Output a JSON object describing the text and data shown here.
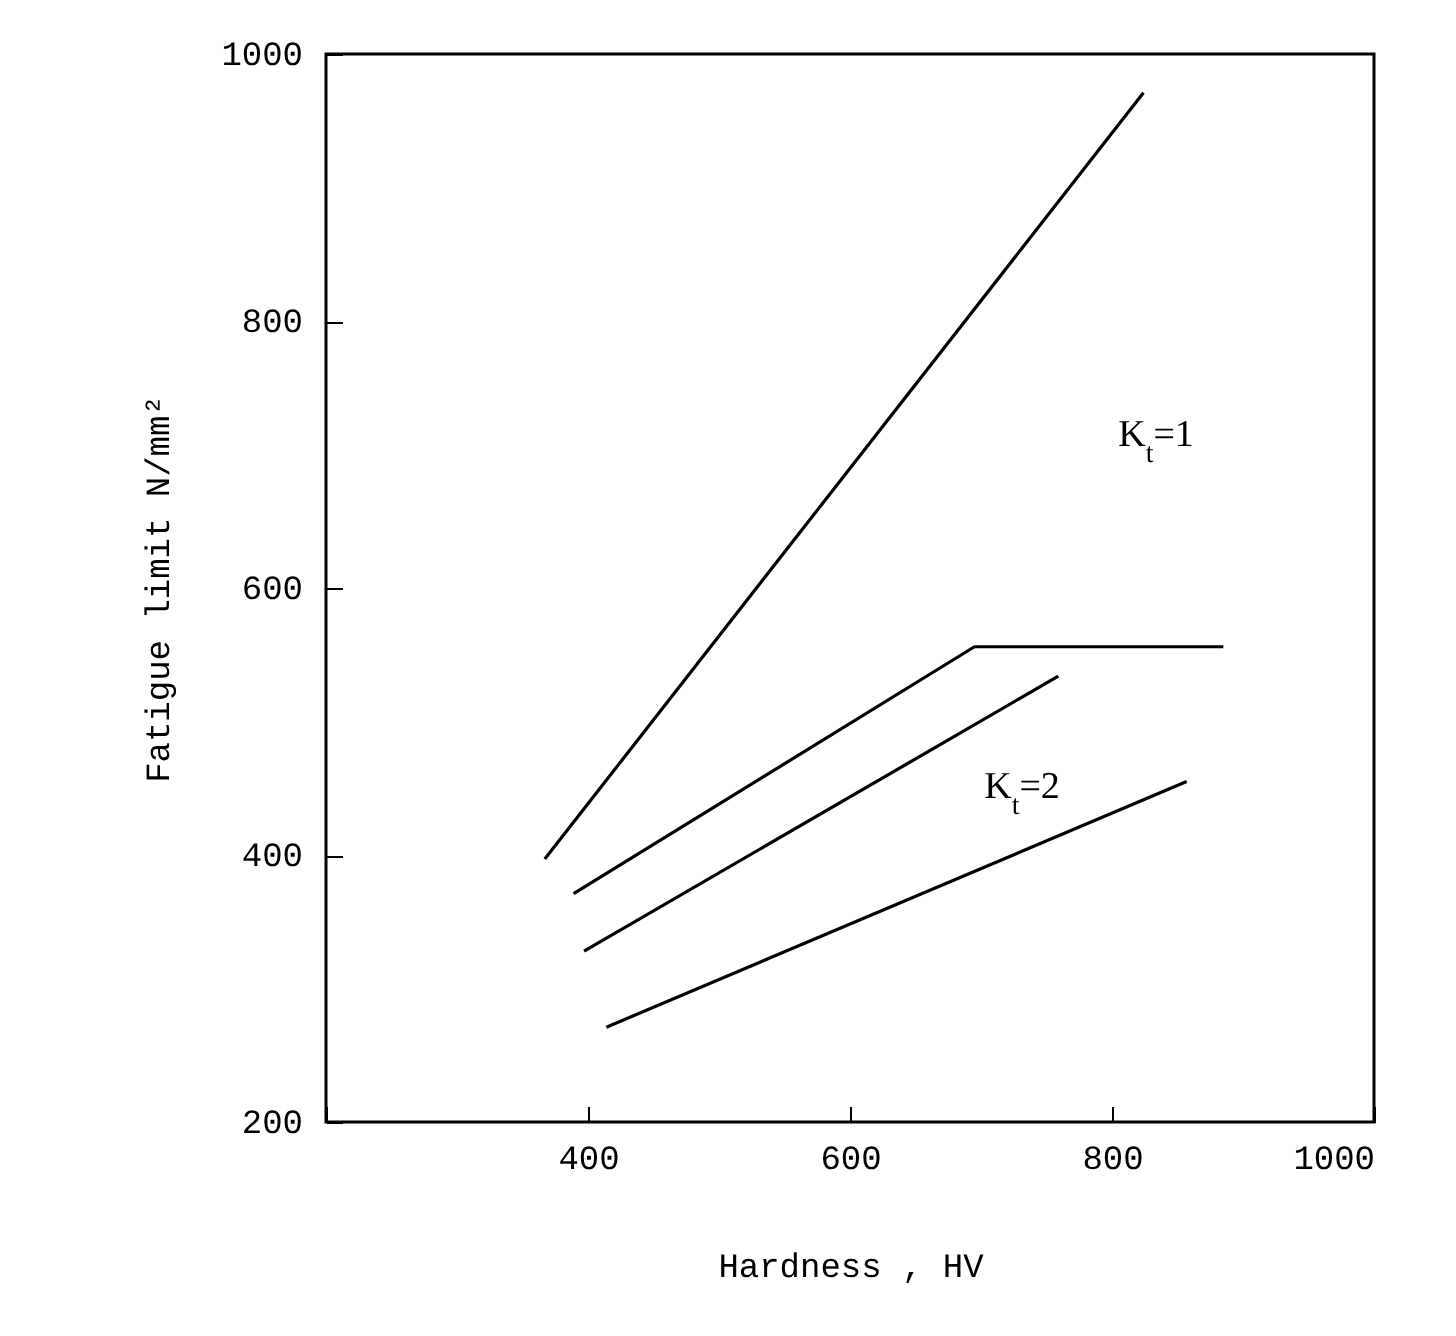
{
  "chart_data": {
    "type": "line",
    "xlabel": "Hardness , HV",
    "ylabel": "Fatigue limit  N/mm²",
    "xlim": [
      200,
      1000
    ],
    "xticks": [
      {
        "value": 200,
        "label": null
      },
      400,
      600,
      800,
      1000
    ],
    "ylim": [
      200,
      1000
    ],
    "yticks": [
      200,
      400,
      600,
      800,
      1000
    ],
    "grid": false,
    "legend": false,
    "marker": "none",
    "line_style": "solid",
    "series": [
      {
        "color": "#000000",
        "x": [
          367,
          824
        ],
        "values": [
          397,
          971
        ]
      },
      {
        "color": "#000000",
        "x": [
          389,
          695,
          885
        ],
        "values": [
          371,
          556,
          556
        ]
      },
      {
        "color": "#000000",
        "x": [
          397,
          759
        ],
        "values": [
          328,
          534
        ]
      },
      {
        "color": "#000000",
        "x": [
          414,
          857
        ],
        "values": [
          271,
          455
        ]
      }
    ],
    "annotations": [
      "K$_{t}$=1",
      "K$_{t}$=2"
    ]
  }
}
